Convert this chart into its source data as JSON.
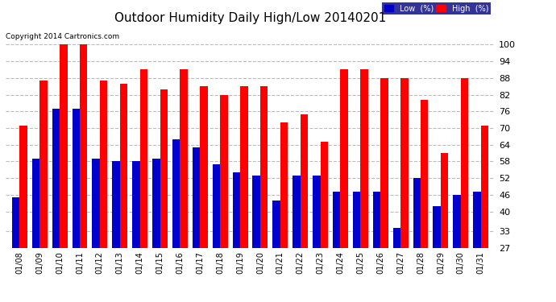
{
  "title": "Outdoor Humidity Daily High/Low 20140201",
  "copyright": "Copyright 2014 Cartronics.com",
  "dates": [
    "01/08",
    "01/09",
    "01/10",
    "01/11",
    "01/12",
    "01/13",
    "01/14",
    "01/15",
    "01/16",
    "01/17",
    "01/18",
    "01/19",
    "01/20",
    "01/21",
    "01/22",
    "01/23",
    "01/24",
    "01/25",
    "01/26",
    "01/27",
    "01/28",
    "01/29",
    "01/30",
    "01/31"
  ],
  "high": [
    71,
    87,
    100,
    100,
    87,
    86,
    91,
    84,
    91,
    85,
    82,
    85,
    85,
    72,
    75,
    65,
    91,
    91,
    88,
    88,
    80,
    61,
    88,
    71
  ],
  "low": [
    45,
    59,
    77,
    77,
    59,
    58,
    58,
    59,
    66,
    63,
    57,
    54,
    53,
    44,
    53,
    53,
    47,
    47,
    47,
    34,
    52,
    42,
    46,
    47
  ],
  "high_color": "#ff0000",
  "low_color": "#0000cc",
  "bg_color": "#ffffff",
  "plot_bg_color": "#ffffff",
  "grid_color": "#bbbbbb",
  "yticks": [
    27,
    33,
    40,
    46,
    52,
    58,
    64,
    70,
    76,
    82,
    88,
    94,
    100
  ],
  "ylim": [
    27,
    103
  ],
  "title_fontsize": 11,
  "tick_fontsize": 8,
  "legend_low_label": "Low  (%)",
  "legend_high_label": "High  (%)"
}
